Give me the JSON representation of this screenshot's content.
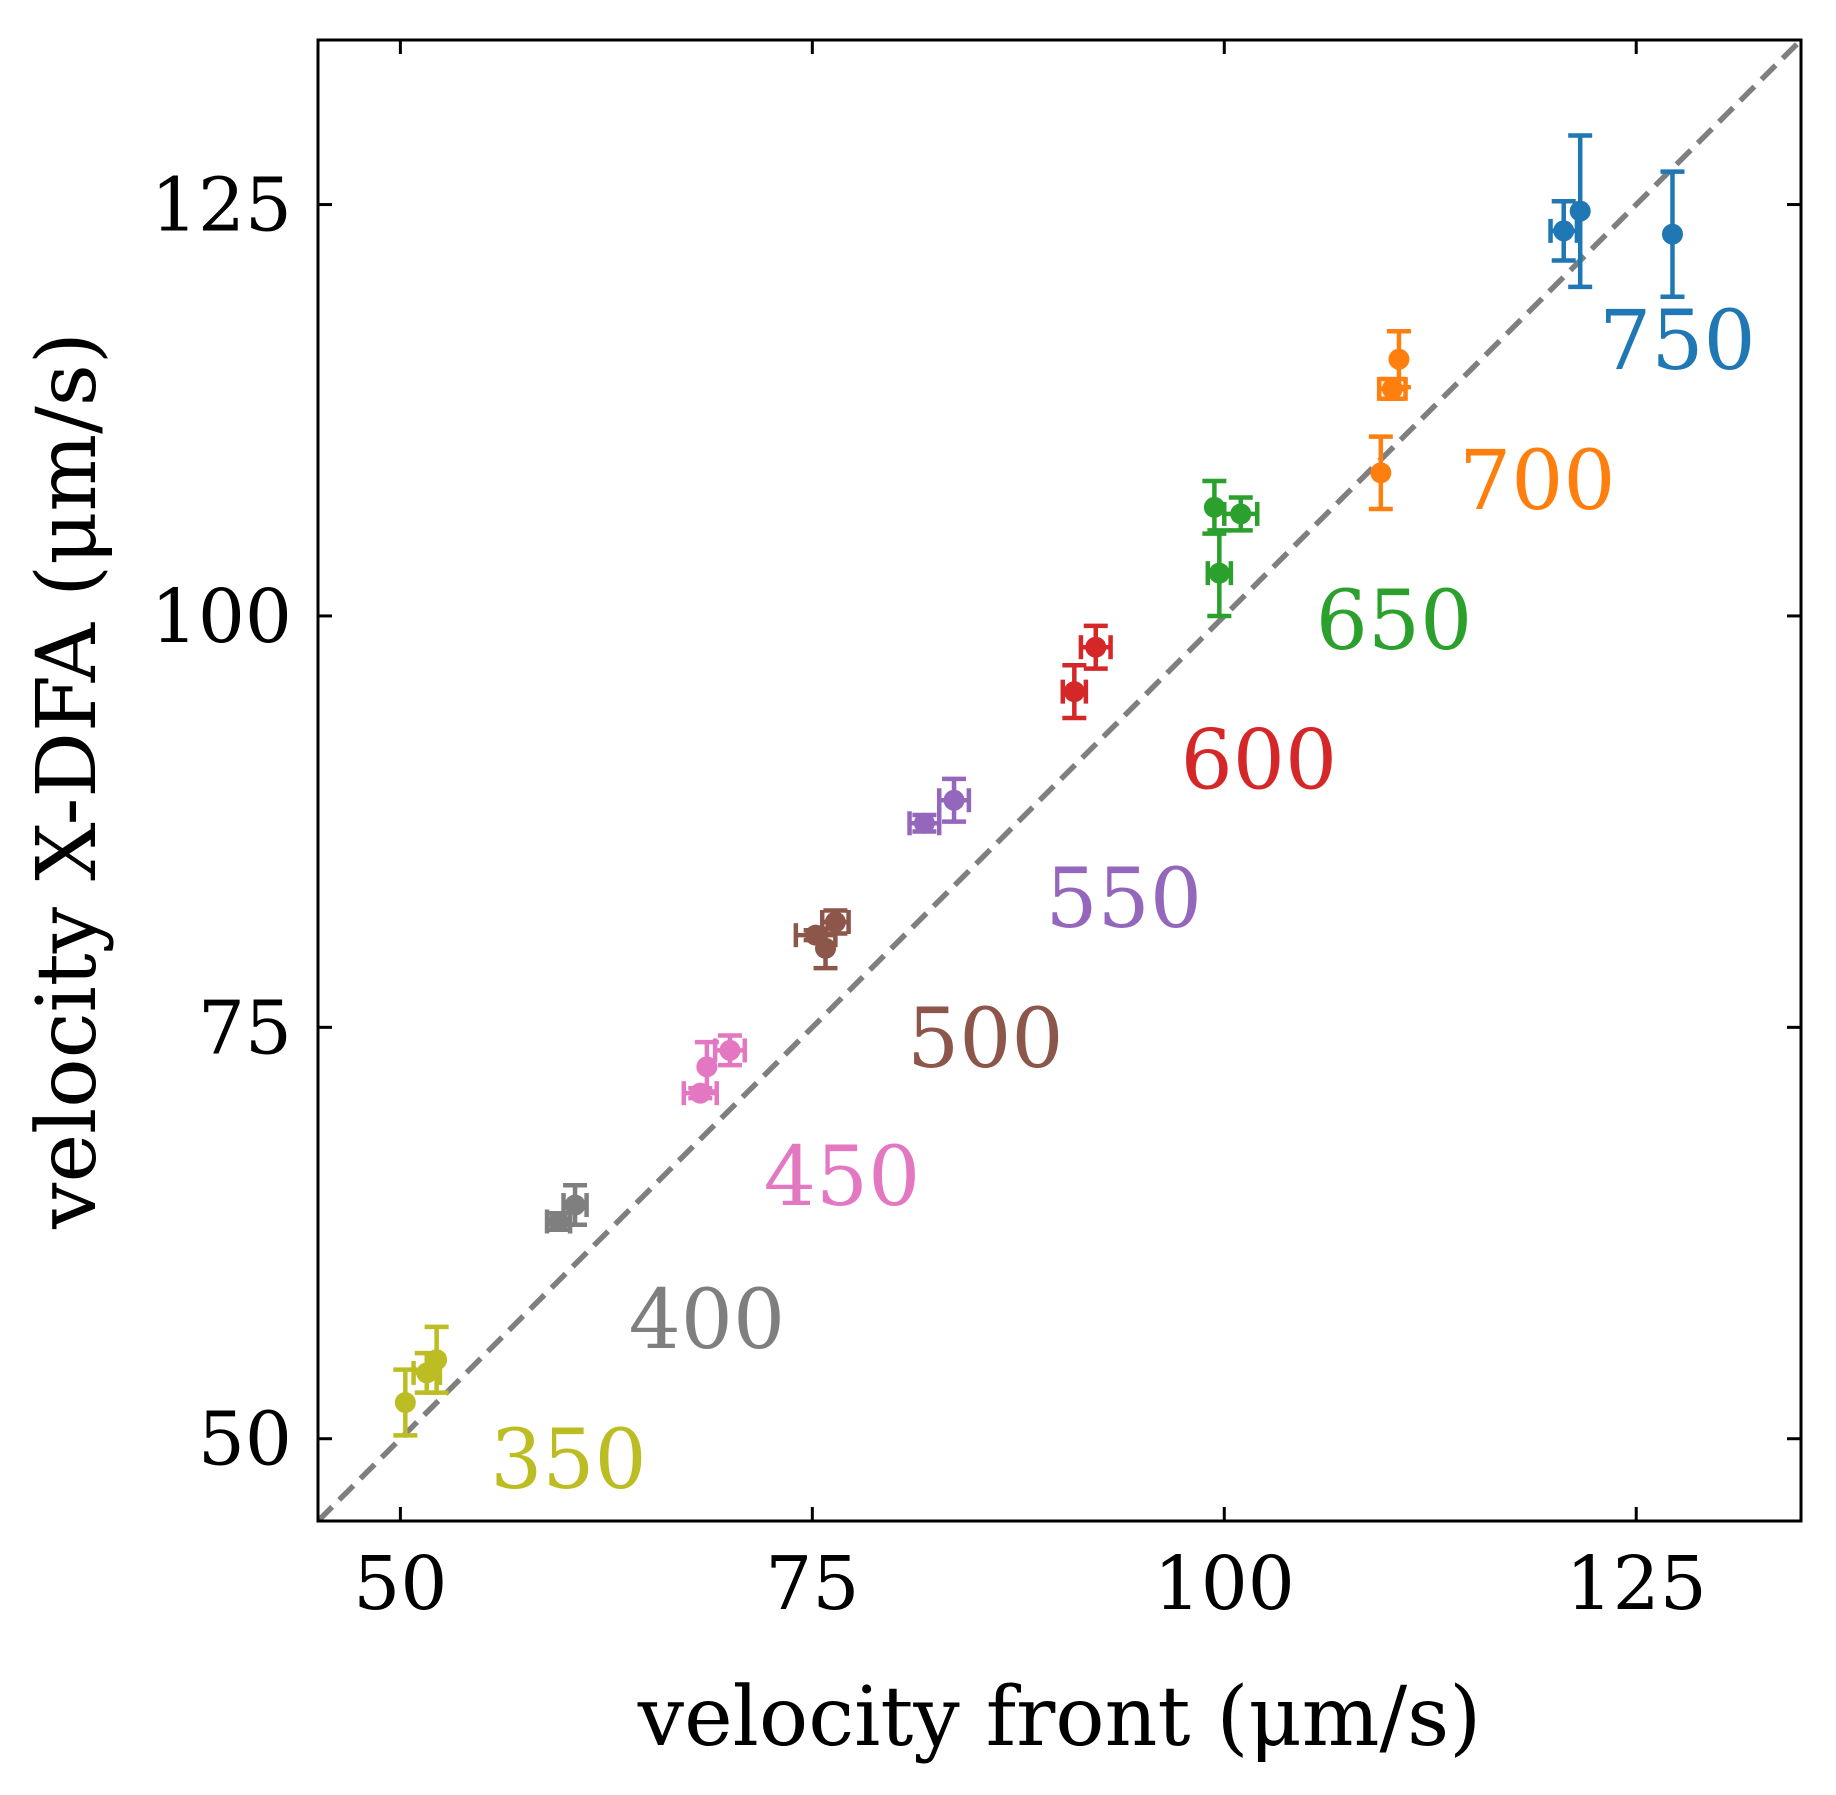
{
  "chart_data": {
    "type": "scatter",
    "title": "",
    "xlabel": "velocity front (μm/s)",
    "ylabel": "velocity X-DFA (μm/s)",
    "xlim": [
      45,
      135
    ],
    "ylim": [
      45,
      135
    ],
    "xticks": [
      50,
      75,
      100,
      125
    ],
    "yticks": [
      50,
      75,
      100,
      125
    ],
    "grid": false,
    "reference_line": {
      "type": "y=x",
      "style": "dashed",
      "color": "#7f7f7f"
    },
    "series": [
      {
        "label": "350",
        "color": "#bcbd22",
        "points": [
          {
            "x": 50.3,
            "y": 52.2,
            "xerr": 0.0,
            "yerr": 2.0
          },
          {
            "x": 51.6,
            "y": 54.0,
            "xerr": 0.8,
            "yerr": 1.2
          },
          {
            "x": 52.2,
            "y": 54.8,
            "xerr": 0.0,
            "yerr": 2.0
          }
        ]
      },
      {
        "label": "400",
        "color": "#7f7f7f",
        "points": [
          {
            "x": 59.6,
            "y": 63.2,
            "xerr": 0.7,
            "yerr": 0.5
          },
          {
            "x": 60.6,
            "y": 64.2,
            "xerr": 0.7,
            "yerr": 1.2
          }
        ]
      },
      {
        "label": "450",
        "color": "#e377c2",
        "points": [
          {
            "x": 68.2,
            "y": 71.0,
            "xerr": 1.0,
            "yerr": 0.3
          },
          {
            "x": 68.6,
            "y": 72.6,
            "xerr": 0.0,
            "yerr": 1.5
          },
          {
            "x": 70.0,
            "y": 73.6,
            "xerr": 0.9,
            "yerr": 0.9
          }
        ]
      },
      {
        "label": "500",
        "color": "#8c564b",
        "points": [
          {
            "x": 75.2,
            "y": 80.6,
            "xerr": 1.2,
            "yerr": 0.3
          },
          {
            "x": 75.8,
            "y": 79.8,
            "xerr": 0.0,
            "yerr": 1.2
          },
          {
            "x": 76.4,
            "y": 81.4,
            "xerr": 0.8,
            "yerr": 0.7
          }
        ]
      },
      {
        "label": "550",
        "color": "#9467bd",
        "points": [
          {
            "x": 81.8,
            "y": 87.4,
            "xerr": 0.9,
            "yerr": 0.5
          },
          {
            "x": 83.6,
            "y": 88.8,
            "xerr": 0.9,
            "yerr": 1.3
          }
        ]
      },
      {
        "label": "600",
        "color": "#d62728",
        "points": [
          {
            "x": 90.9,
            "y": 95.4,
            "xerr": 0.7,
            "yerr": 1.6
          },
          {
            "x": 92.2,
            "y": 98.1,
            "xerr": 0.9,
            "yerr": 1.3
          }
        ]
      },
      {
        "label": "650",
        "color": "#2ca02c",
        "points": [
          {
            "x": 99.4,
            "y": 106.6,
            "xerr": 0.0,
            "yerr": 1.6
          },
          {
            "x": 99.7,
            "y": 102.6,
            "xerr": 0.7,
            "yerr": 2.6
          },
          {
            "x": 101.0,
            "y": 106.2,
            "xerr": 1.0,
            "yerr": 1.0
          }
        ]
      },
      {
        "label": "700",
        "color": "#ff7f0e",
        "points": [
          {
            "x": 109.5,
            "y": 108.7,
            "xerr": 0.0,
            "yerr": 2.2
          },
          {
            "x": 110.2,
            "y": 113.8,
            "xerr": 0.8,
            "yerr": 0.6
          },
          {
            "x": 110.6,
            "y": 115.6,
            "xerr": 0.0,
            "yerr": 1.7
          }
        ]
      },
      {
        "label": "750",
        "color": "#1f77b4",
        "points": [
          {
            "x": 120.6,
            "y": 123.4,
            "xerr": 0.8,
            "yerr": 1.8
          },
          {
            "x": 121.6,
            "y": 124.6,
            "xerr": 0.0,
            "yerr": 4.6
          },
          {
            "x": 127.2,
            "y": 123.2,
            "xerr": 0.0,
            "yerr": 3.8
          }
        ]
      }
    ],
    "group_label_positions": [
      {
        "label": "350",
        "x": 60.2,
        "y": 47.0
      },
      {
        "label": "400",
        "x": 68.6,
        "y": 55.5
      },
      {
        "label": "450",
        "x": 76.8,
        "y": 64.2
      },
      {
        "label": "500",
        "x": 85.5,
        "y": 72.6
      },
      {
        "label": "550",
        "x": 93.9,
        "y": 81.1
      },
      {
        "label": "600",
        "x": 102.1,
        "y": 89.5
      },
      {
        "label": "650",
        "x": 110.3,
        "y": 98.0
      },
      {
        "label": "700",
        "x": 119.0,
        "y": 106.5
      },
      {
        "label": "750",
        "x": 127.5,
        "y": 115.0
      }
    ]
  }
}
